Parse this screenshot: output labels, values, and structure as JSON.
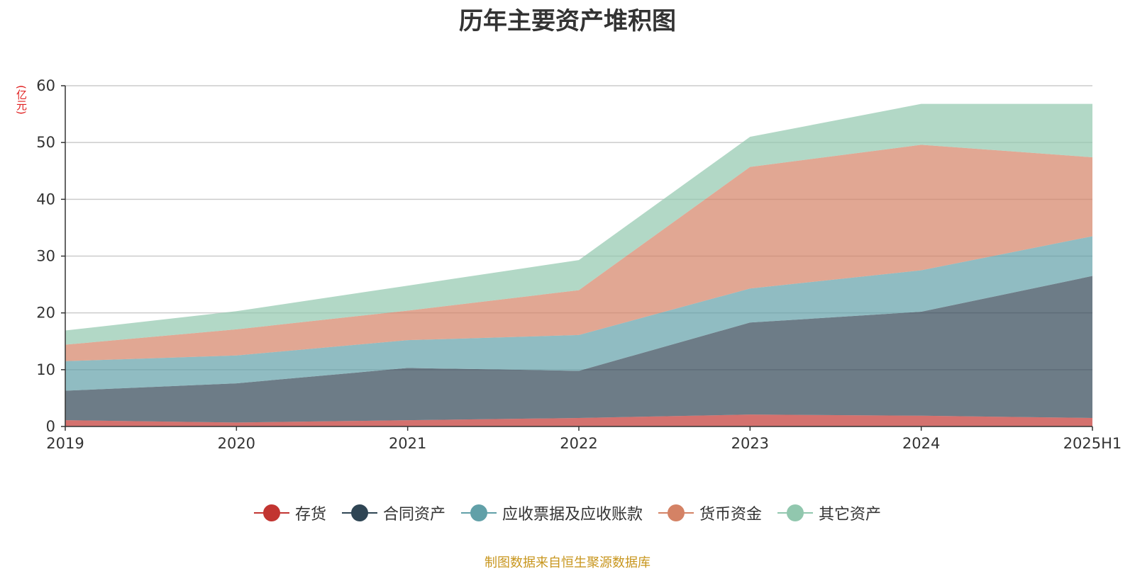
{
  "chart_data": {
    "type": "area",
    "stacked": true,
    "title": "历年主要资产堆积图",
    "unit_label": "(亿元)",
    "categories": [
      "2019",
      "2020",
      "2021",
      "2022",
      "2023",
      "2024",
      "2025H1"
    ],
    "ylim": [
      0,
      60
    ],
    "yticks": [
      0,
      10,
      20,
      30,
      40,
      50,
      60
    ],
    "grid": true,
    "legend_position": "bottom",
    "series": [
      {
        "name": "存货",
        "color": "#c23531",
        "values": [
          1.1,
          0.7,
          1.1,
          1.5,
          2.1,
          1.9,
          1.5
        ]
      },
      {
        "name": "合同资产",
        "color": "#2f4554",
        "values": [
          5.2,
          6.9,
          9.2,
          8.3,
          16.2,
          18.3,
          25.0
        ]
      },
      {
        "name": "应收票据及应收账款",
        "color": "#61a0a8",
        "values": [
          5.2,
          4.9,
          4.9,
          6.3,
          6.0,
          7.3,
          7.0
        ]
      },
      {
        "name": "货币资金",
        "color": "#d48265",
        "values": [
          2.9,
          4.6,
          5.2,
          7.9,
          21.4,
          22.1,
          13.9
        ]
      },
      {
        "name": "其它资产",
        "color": "#91c7ae",
        "values": [
          2.5,
          3.2,
          4.4,
          5.3,
          5.3,
          7.2,
          9.4
        ]
      }
    ]
  },
  "source_note": "制图数据来自恒生聚源数据库"
}
